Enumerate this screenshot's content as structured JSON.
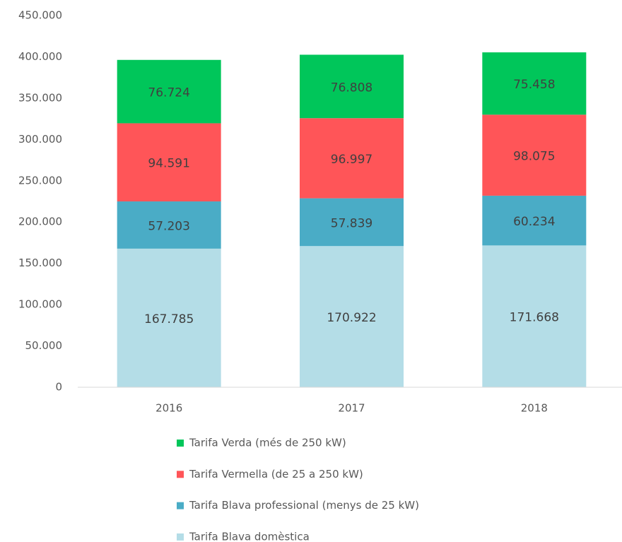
{
  "chart_data": {
    "type": "stacked_bar",
    "categories": [
      "2016",
      "2017",
      "2018"
    ],
    "series": [
      {
        "name": "Tarifa Blava domèstica",
        "color": "#b4dde7",
        "values": [
          167785,
          170922,
          171668
        ],
        "value_labels": [
          "167.785",
          "170.922",
          "171.668"
        ]
      },
      {
        "name": "Tarifa Blava professional (menys de 25 kW)",
        "color": "#4aacc6",
        "values": [
          57203,
          57839,
          60234
        ],
        "value_labels": [
          "57.203",
          "57.839",
          "60.234"
        ]
      },
      {
        "name": "Tarifa Vermella (de 25 a 250 kW)",
        "color": "#ff5558",
        "values": [
          94591,
          96997,
          98075
        ],
        "value_labels": [
          "94.591",
          "96.997",
          "98.075"
        ]
      },
      {
        "name": "Tarifa Verda (més de 250 kW)",
        "color": "#00c65a",
        "values": [
          76724,
          76808,
          75458
        ],
        "value_labels": [
          "76.724",
          "76.808",
          "75.458"
        ]
      }
    ],
    "ylim": [
      0,
      450000
    ],
    "yticks": [
      0,
      {
        "value": 50000,
        "label": "50.000"
      },
      {
        "value": 100000,
        "label": "100.000"
      },
      {
        "value": 150000,
        "label": "150.000"
      },
      {
        "value": 200000,
        "label": "200.000"
      },
      {
        "value": 250000,
        "label": "250.000"
      },
      {
        "value": 300000,
        "label": "300.000"
      },
      {
        "value": 350000,
        "label": "350.000"
      },
      {
        "value": 400000,
        "label": "400.000"
      },
      {
        "value": 450000,
        "label": "450.000"
      }
    ],
    "grid": false,
    "legend": "bottom"
  }
}
